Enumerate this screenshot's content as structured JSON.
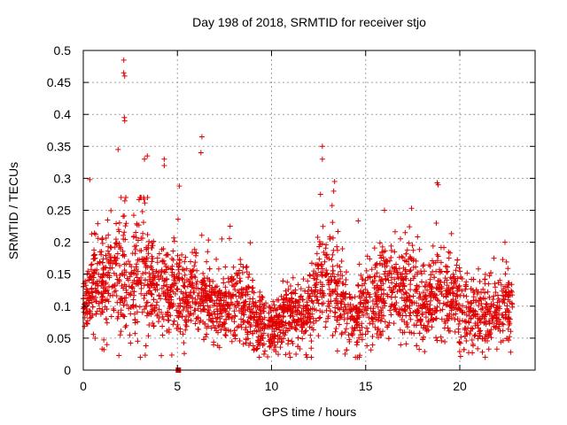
{
  "chart_data": {
    "type": "scatter",
    "title": "Day 198 of 2018, SRMTID for receiver stjo",
    "xlabel": "GPS time / hours",
    "ylabel": "SRMTID / TECUs",
    "xlim": [
      0,
      24
    ],
    "ylim": [
      0,
      0.5
    ],
    "x_ticks": [
      0,
      5,
      10,
      15,
      20
    ],
    "x_tick_labels": [
      "0",
      "5",
      "10",
      "15",
      "20"
    ],
    "y_ticks": [
      0,
      0.05,
      0.1,
      0.15,
      0.2,
      0.25,
      0.3,
      0.35,
      0.4,
      0.45,
      0.5
    ],
    "y_tick_labels": [
      "0",
      "0.05",
      "0.1",
      "0.15",
      "0.2",
      "0.25",
      "0.3",
      "0.35",
      "0.4",
      "0.45",
      "0.5"
    ],
    "grid": true,
    "marker": "plus",
    "series_color": "#e00000",
    "profile_hours": [
      0,
      0.5,
      1,
      1.5,
      2,
      2.5,
      3,
      3.5,
      4,
      4.5,
      5,
      5.5,
      6,
      6.5,
      7,
      7.5,
      8,
      8.5,
      9,
      9.5,
      10,
      10.5,
      11,
      11.5,
      12,
      12.5,
      13,
      13.5,
      14,
      14.5,
      15,
      15.5,
      16,
      16.5,
      17,
      17.5,
      18,
      18.5,
      19,
      19.5,
      20,
      20.5,
      21,
      21.5,
      22,
      22.5,
      22.8
    ],
    "profile_median": [
      0.095,
      0.13,
      0.13,
      0.14,
      0.15,
      0.13,
      0.15,
      0.14,
      0.14,
      0.12,
      0.12,
      0.11,
      0.12,
      0.11,
      0.09,
      0.095,
      0.1,
      0.1,
      0.085,
      0.07,
      0.06,
      0.075,
      0.09,
      0.09,
      0.085,
      0.13,
      0.14,
      0.12,
      0.085,
      0.08,
      0.1,
      0.11,
      0.12,
      0.12,
      0.12,
      0.12,
      0.09,
      0.11,
      0.12,
      0.11,
      0.1,
      0.09,
      0.08,
      0.085,
      0.09,
      0.1,
      0.1
    ],
    "profile_spread": [
      0.03,
      0.045,
      0.05,
      0.06,
      0.07,
      0.055,
      0.07,
      0.06,
      0.065,
      0.045,
      0.045,
      0.04,
      0.05,
      0.04,
      0.035,
      0.04,
      0.045,
      0.04,
      0.035,
      0.03,
      0.025,
      0.03,
      0.035,
      0.035,
      0.035,
      0.05,
      0.06,
      0.05,
      0.035,
      0.035,
      0.04,
      0.045,
      0.05,
      0.05,
      0.05,
      0.055,
      0.04,
      0.045,
      0.05,
      0.045,
      0.045,
      0.04,
      0.03,
      0.035,
      0.035,
      0.04,
      0.04
    ],
    "points_per_hour": 130,
    "outliers": [
      {
        "x": 2.15,
        "y": 0.485
      },
      {
        "x": 2.15,
        "y": 0.465
      },
      {
        "x": 2.2,
        "y": 0.46
      },
      {
        "x": 2.18,
        "y": 0.395
      },
      {
        "x": 2.2,
        "y": 0.39
      },
      {
        "x": 6.3,
        "y": 0.365
      },
      {
        "x": 12.7,
        "y": 0.35
      },
      {
        "x": 12.7,
        "y": 0.33
      },
      {
        "x": 1.85,
        "y": 0.345
      },
      {
        "x": 3.4,
        "y": 0.335
      },
      {
        "x": 3.25,
        "y": 0.33
      },
      {
        "x": 4.3,
        "y": 0.33
      },
      {
        "x": 4.3,
        "y": 0.32
      },
      {
        "x": 0.35,
        "y": 0.298
      },
      {
        "x": 13.35,
        "y": 0.295
      },
      {
        "x": 18.8,
        "y": 0.293
      },
      {
        "x": 18.85,
        "y": 0.29
      },
      {
        "x": 5.1,
        "y": 0.288
      },
      {
        "x": 6.25,
        "y": 0.34
      },
      {
        "x": 12.6,
        "y": 0.275
      },
      {
        "x": 13.3,
        "y": 0.28
      },
      {
        "x": 16.0,
        "y": 0.25
      },
      {
        "x": 18.75,
        "y": 0.23
      },
      {
        "x": 7.8,
        "y": 0.225
      },
      {
        "x": 17.1,
        "y": 0.215
      },
      {
        "x": 22.4,
        "y": 0.2
      },
      {
        "x": 22.7,
        "y": 0.028
      },
      {
        "x": 1.1,
        "y": 0.032
      },
      {
        "x": 9.6,
        "y": 0.025
      },
      {
        "x": 11.3,
        "y": 0.025
      },
      {
        "x": 13.5,
        "y": 0.03
      },
      {
        "x": 21.2,
        "y": 0.028
      }
    ],
    "zero_marker": {
      "x": 5.05,
      "y": 0.0
    }
  }
}
